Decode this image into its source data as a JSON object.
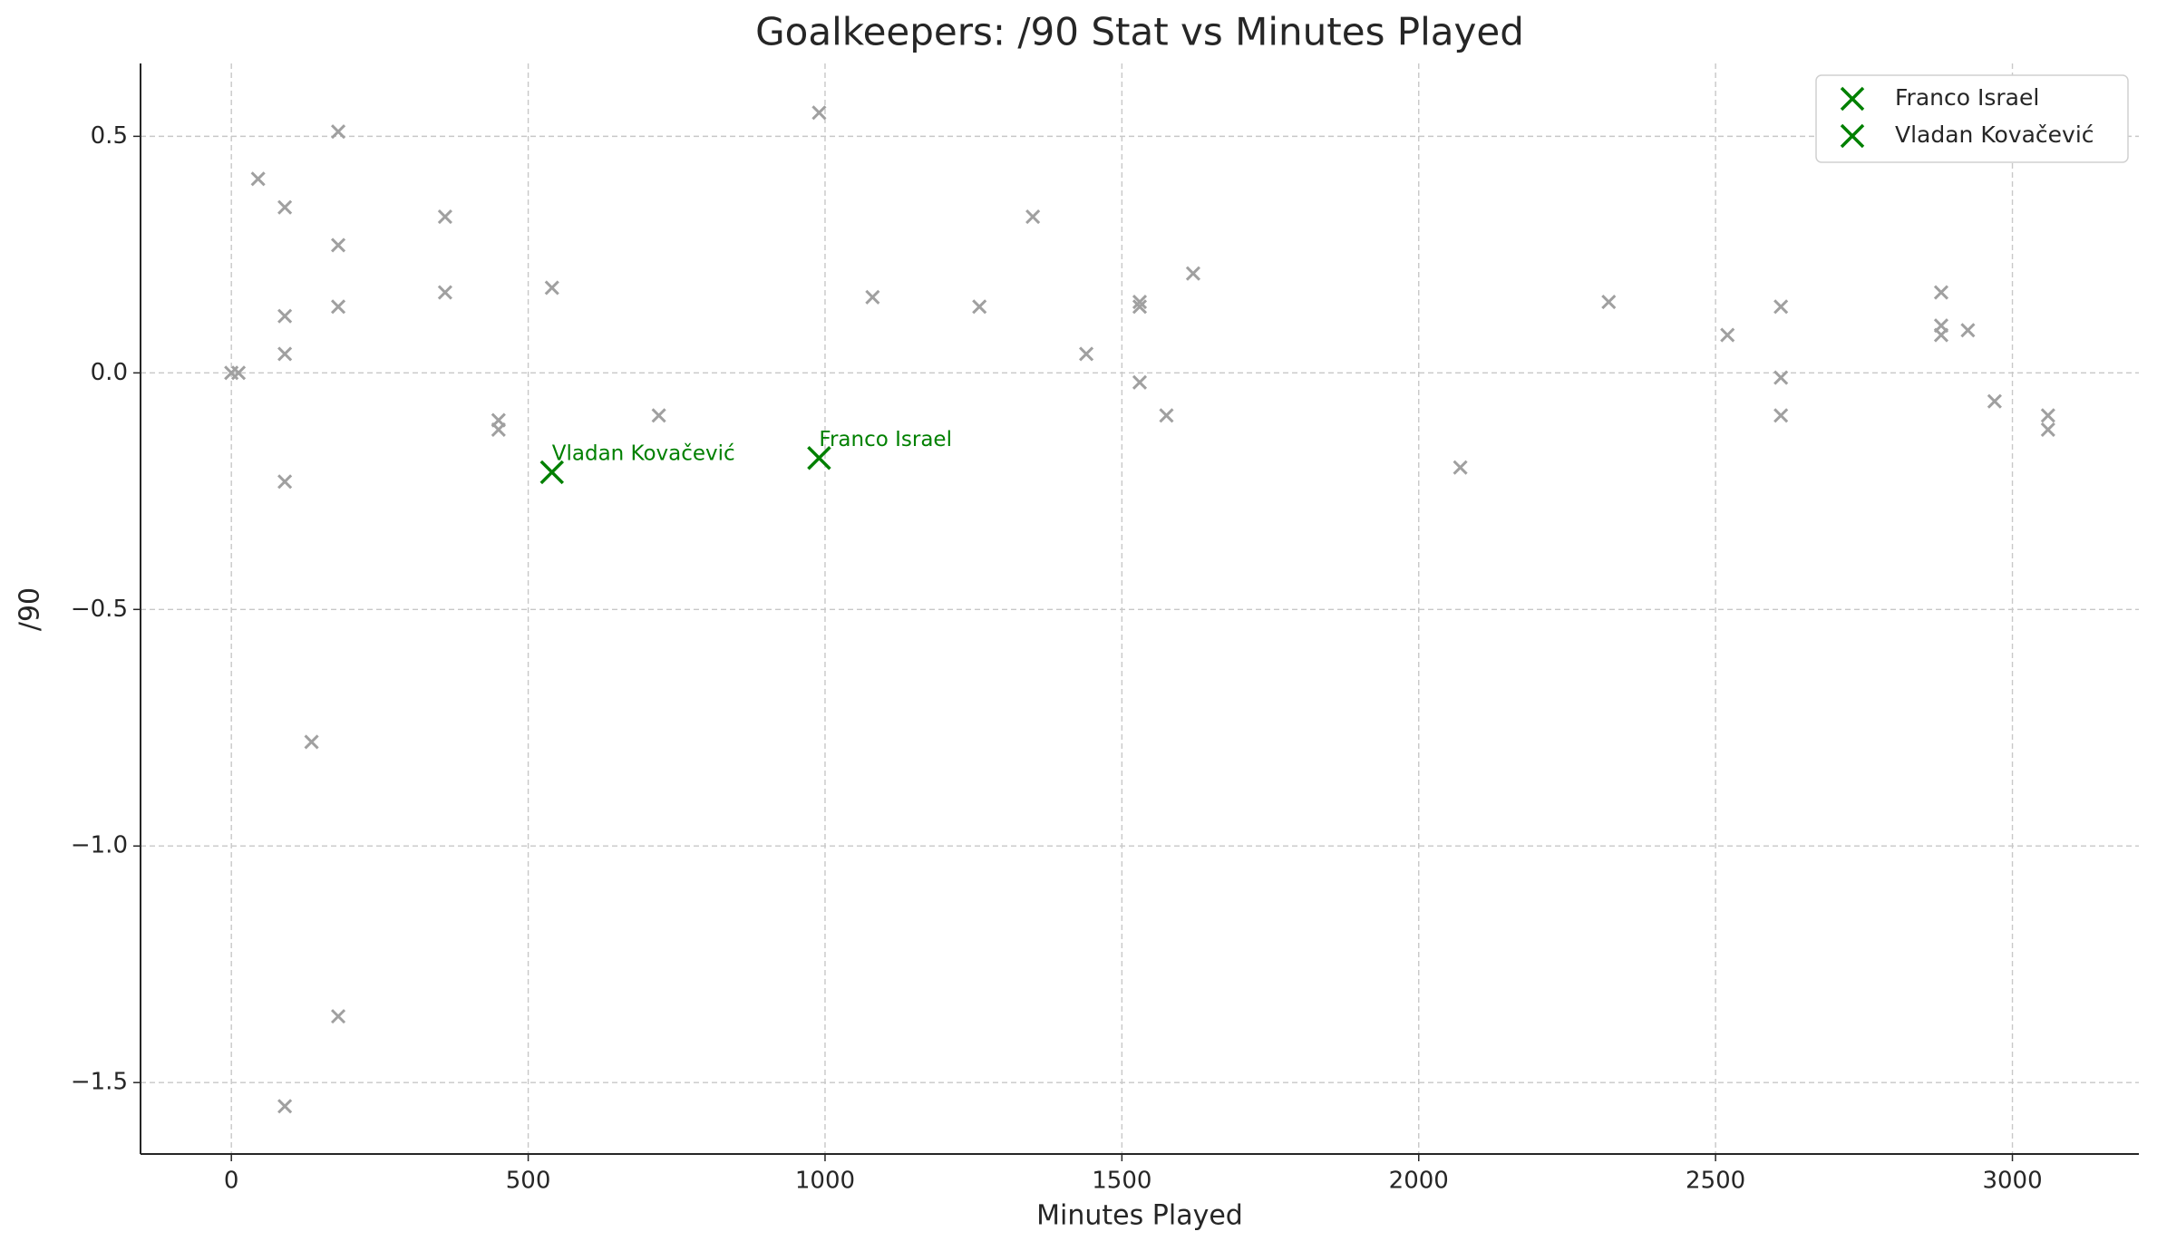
{
  "chart_data": {
    "type": "scatter",
    "title": "Goalkeepers: /90 Stat vs Minutes Played",
    "x_label": "Minutes Played",
    "y_label": "/90",
    "xlim": [
      -153,
      3213
    ],
    "ylim": [
      -1.651,
      0.654
    ],
    "xticks": [
      0,
      500,
      1000,
      1500,
      2000,
      2500,
      3000
    ],
    "yticks": [
      {
        "value": -1.5,
        "label": "−1.5"
      },
      {
        "value": -1,
        "label": "−1.0"
      },
      {
        "value": -0.5,
        "label": "−0.5"
      },
      {
        "value": 0,
        "label": "0.0"
      },
      0.5
    ],
    "grid": true,
    "legend": "upper right",
    "background_points": {
      "color": "#a0a0a0",
      "x": [
        0,
        12,
        45,
        90,
        90,
        90,
        90,
        90,
        135,
        180,
        180,
        180,
        180,
        360,
        360,
        450,
        450,
        540,
        720,
        990,
        1080,
        1260,
        1350,
        1440,
        1530,
        1530,
        1530,
        1575,
        1620,
        2070,
        2320,
        2520,
        2610,
        2610,
        2610,
        2880,
        2880,
        2880,
        2925,
        2970,
        3060,
        3060
      ],
      "y": [
        0,
        0,
        0.41,
        0.35,
        0.12,
        0.04,
        -0.23,
        -1.55,
        -0.78,
        0.51,
        0.27,
        0.14,
        -1.36,
        0.33,
        0.17,
        -0.1,
        -0.12,
        0.18,
        -0.09,
        0.55,
        0.16,
        0.14,
        0.33,
        0.04,
        0.15,
        0.14,
        -0.02,
        -0.09,
        0.21,
        -0.2,
        0.15,
        0.08,
        0.14,
        -0.01,
        -0.09,
        0.17,
        0.1,
        0.08,
        0.09,
        -0.06,
        -0.09,
        -0.12
      ]
    },
    "series": [
      {
        "name": "Franco Israel",
        "color": "#008000",
        "x": [
          990
        ],
        "values": [
          -0.18
        ]
      },
      {
        "name": "Vladan Kovačević",
        "color": "#008000",
        "x": [
          540
        ],
        "values": [
          -0.21
        ]
      }
    ]
  }
}
